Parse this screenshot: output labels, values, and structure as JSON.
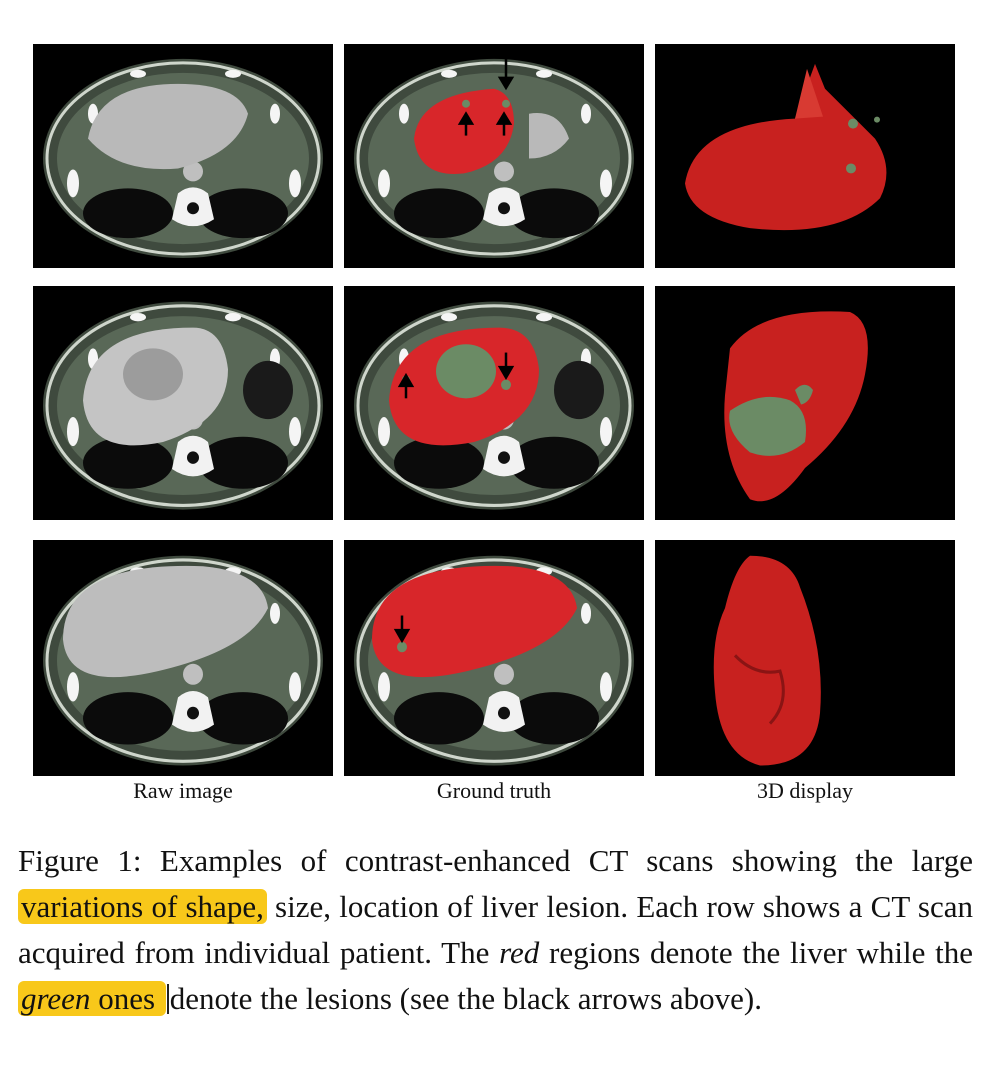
{
  "figure": {
    "columns": [
      {
        "label": "Raw image"
      },
      {
        "label": "Ground truth"
      },
      {
        "label": "3D display"
      }
    ],
    "rows": 3,
    "colors": {
      "liver": "#d8262a",
      "lesion": "#6b8b65",
      "tissue": "#b9b9b9",
      "fat": "#4b5a48",
      "bone": "#f2f2f2",
      "highlight": "#f8c81a"
    }
  },
  "caption": {
    "figure_label": "Figure 1:",
    "part1": " Examples of contrast-enhanced CT scans showing the large ",
    "highlight1": "variations of shape,",
    "part2": " size, location of liver lesion. Each row shows a CT scan acquired from individual patient. The ",
    "red_word": "red",
    "part3": " regions denote the liver while the ",
    "green_word": "green",
    "highlight2_rest": " ones ",
    "part4": "denote the lesions (see the black arrows above)."
  }
}
